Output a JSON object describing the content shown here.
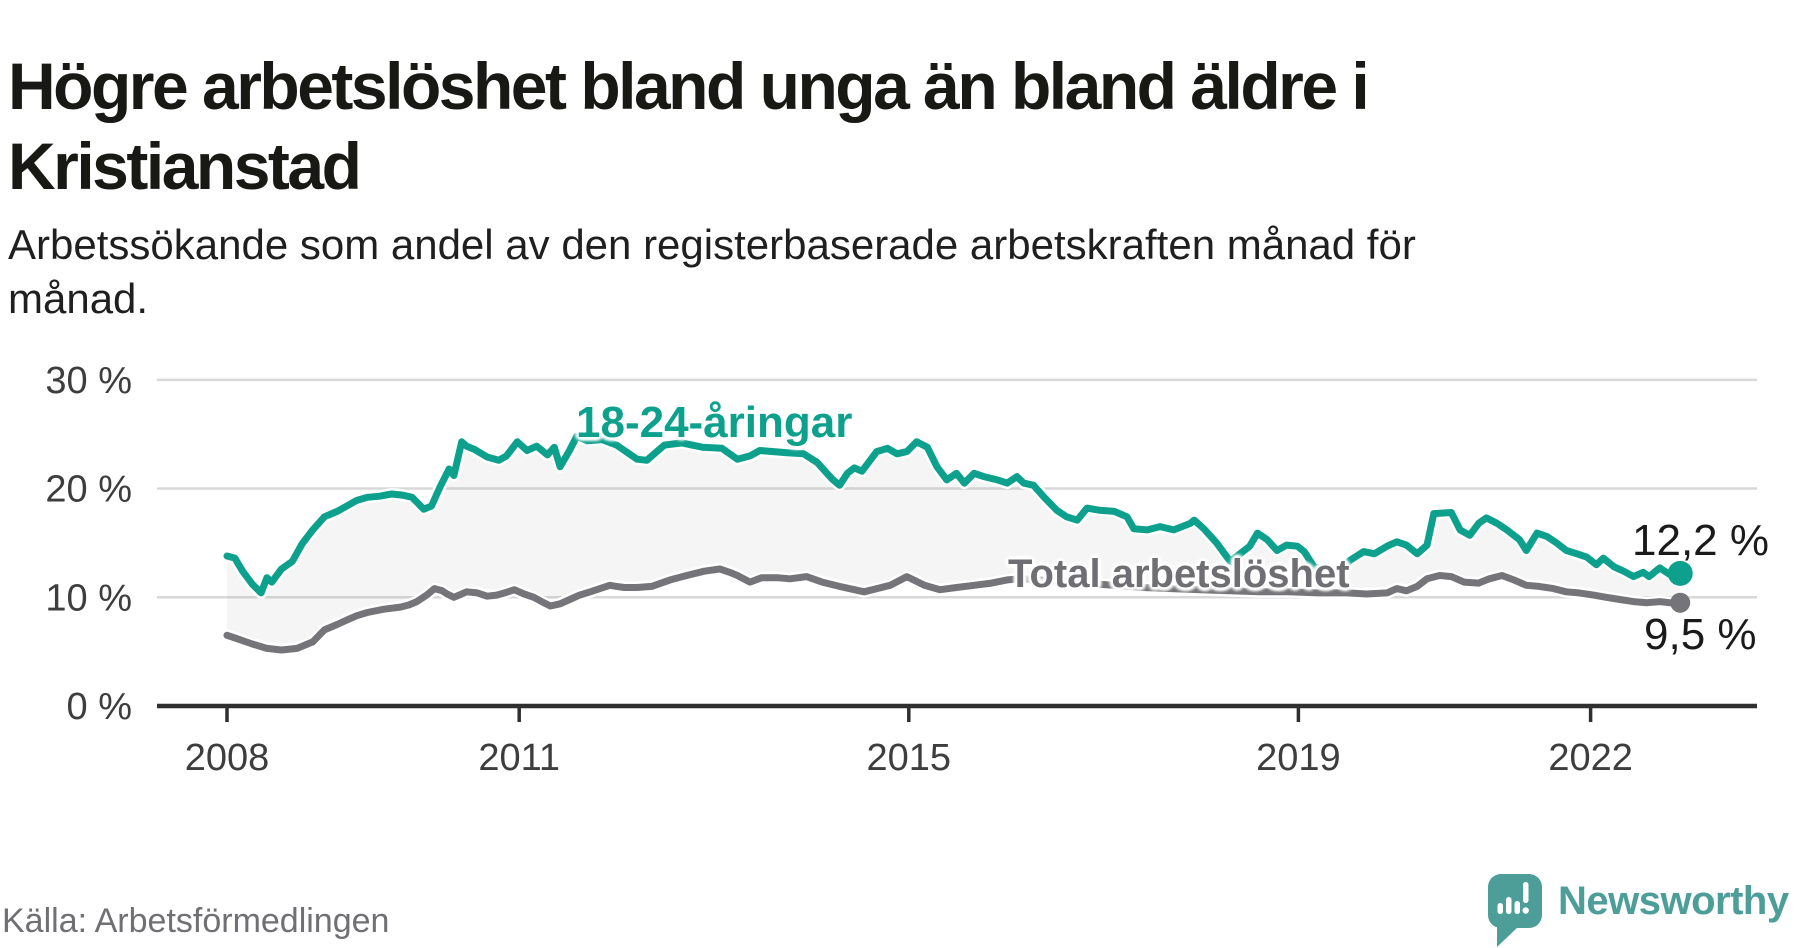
{
  "header": {
    "title": "Högre arbetslöshet bland unga än bland äldre i Kristianstad",
    "subtitle": "Arbetssökande som andel av den registerbaserade arbetskraften månad för månad."
  },
  "footer": {
    "source": "Källa: Arbetsförmedlingen",
    "logo_text": "Newsworthy"
  },
  "colors": {
    "young_line": "#0da18d",
    "total_line": "#757579",
    "fill_between": "rgba(140,140,145,0.09)",
    "gridline": "#d8d8d8",
    "axis": "#2f2f2f",
    "tick_text": "#3d3d3d",
    "value_text": "#1a1a1a",
    "logo_teal": "#4d9e99"
  },
  "chart_data": {
    "type": "line",
    "title": "Högre arbetslöshet bland unga än bland äldre i Kristianstad",
    "subtitle": "Arbetssökande som andel av den registerbaserade arbetskraften månad för månad.",
    "xlabel": "",
    "ylabel": "",
    "grid": "horizontal",
    "legend_position": "inline-labels",
    "fill_between_series": true,
    "x": {
      "min": 2008.0,
      "max": 2022.92,
      "ticks": [
        2008,
        2011,
        2015,
        2019,
        2022
      ]
    },
    "y": {
      "min": 0,
      "max": 30,
      "ticks": [
        0,
        10,
        20,
        30
      ],
      "tick_suffix": " %"
    },
    "series": [
      {
        "name": "18-24-åringar",
        "color": "#0da18d",
        "end_value": 12.2,
        "end_value_label": "12,2 %",
        "points": [
          [
            2008.0,
            13.8
          ],
          [
            2008.08,
            13.6
          ],
          [
            2008.16,
            12.4
          ],
          [
            2008.26,
            11.2
          ],
          [
            2008.35,
            10.4
          ],
          [
            2008.41,
            11.8
          ],
          [
            2008.46,
            11.4
          ],
          [
            2008.56,
            12.6
          ],
          [
            2008.67,
            13.3
          ],
          [
            2008.77,
            14.9
          ],
          [
            2008.88,
            16.2
          ],
          [
            2009.0,
            17.4
          ],
          [
            2009.13,
            17.9
          ],
          [
            2009.23,
            18.4
          ],
          [
            2009.33,
            18.9
          ],
          [
            2009.44,
            19.2
          ],
          [
            2009.57,
            19.3
          ],
          [
            2009.69,
            19.5
          ],
          [
            2009.8,
            19.4
          ],
          [
            2009.9,
            19.2
          ],
          [
            2010.02,
            18.1
          ],
          [
            2010.1,
            18.4
          ],
          [
            2010.19,
            20.2
          ],
          [
            2010.28,
            21.8
          ],
          [
            2010.33,
            21.2
          ],
          [
            2010.41,
            24.3
          ],
          [
            2010.46,
            23.9
          ],
          [
            2010.54,
            23.6
          ],
          [
            2010.67,
            22.9
          ],
          [
            2010.79,
            22.6
          ],
          [
            2010.87,
            23.0
          ],
          [
            2010.98,
            24.3
          ],
          [
            2011.08,
            23.5
          ],
          [
            2011.18,
            23.9
          ],
          [
            2011.29,
            23.1
          ],
          [
            2011.36,
            23.8
          ],
          [
            2011.42,
            22.0
          ],
          [
            2011.51,
            23.4
          ],
          [
            2011.59,
            24.8
          ],
          [
            2011.7,
            24.4
          ],
          [
            2011.85,
            24.5
          ],
          [
            2012.0,
            24.0
          ],
          [
            2012.21,
            22.7
          ],
          [
            2012.31,
            22.6
          ],
          [
            2012.49,
            24.0
          ],
          [
            2012.67,
            24.2
          ],
          [
            2012.88,
            23.8
          ],
          [
            2013.08,
            23.7
          ],
          [
            2013.24,
            22.7
          ],
          [
            2013.37,
            23.0
          ],
          [
            2013.47,
            23.5
          ],
          [
            2013.75,
            23.3
          ],
          [
            2013.92,
            23.2
          ],
          [
            2014.06,
            22.4
          ],
          [
            2014.21,
            20.9
          ],
          [
            2014.29,
            20.3
          ],
          [
            2014.37,
            21.4
          ],
          [
            2014.44,
            21.9
          ],
          [
            2014.52,
            21.6
          ],
          [
            2014.67,
            23.4
          ],
          [
            2014.78,
            23.7
          ],
          [
            2014.88,
            23.2
          ],
          [
            2014.98,
            23.4
          ],
          [
            2015.08,
            24.3
          ],
          [
            2015.19,
            23.8
          ],
          [
            2015.29,
            22.0
          ],
          [
            2015.39,
            20.8
          ],
          [
            2015.49,
            21.4
          ],
          [
            2015.57,
            20.5
          ],
          [
            2015.67,
            21.4
          ],
          [
            2015.77,
            21.1
          ],
          [
            2015.91,
            20.8
          ],
          [
            2016.01,
            20.5
          ],
          [
            2016.11,
            21.1
          ],
          [
            2016.18,
            20.5
          ],
          [
            2016.28,
            20.3
          ],
          [
            2016.39,
            19.2
          ],
          [
            2016.52,
            18.0
          ],
          [
            2016.62,
            17.4
          ],
          [
            2016.73,
            17.1
          ],
          [
            2016.83,
            18.2
          ],
          [
            2016.96,
            18.0
          ],
          [
            2017.11,
            17.9
          ],
          [
            2017.24,
            17.4
          ],
          [
            2017.31,
            16.3
          ],
          [
            2017.45,
            16.2
          ],
          [
            2017.58,
            16.5
          ],
          [
            2017.72,
            16.2
          ],
          [
            2017.89,
            16.8
          ],
          [
            2017.93,
            17.1
          ],
          [
            2018.03,
            16.3
          ],
          [
            2018.16,
            15.0
          ],
          [
            2018.3,
            13.3
          ],
          [
            2018.4,
            14.0
          ],
          [
            2018.5,
            14.7
          ],
          [
            2018.58,
            15.9
          ],
          [
            2018.68,
            15.3
          ],
          [
            2018.78,
            14.3
          ],
          [
            2018.88,
            14.8
          ],
          [
            2018.99,
            14.7
          ],
          [
            2019.06,
            14.2
          ],
          [
            2019.16,
            12.8
          ],
          [
            2019.3,
            12.4
          ],
          [
            2019.4,
            12.3
          ],
          [
            2019.53,
            13.4
          ],
          [
            2019.67,
            14.2
          ],
          [
            2019.78,
            14.0
          ],
          [
            2019.91,
            14.7
          ],
          [
            2020.01,
            15.1
          ],
          [
            2020.11,
            14.8
          ],
          [
            2020.22,
            14.0
          ],
          [
            2020.32,
            14.8
          ],
          [
            2020.39,
            17.7
          ],
          [
            2020.57,
            17.8
          ],
          [
            2020.66,
            16.2
          ],
          [
            2020.76,
            15.7
          ],
          [
            2020.85,
            16.8
          ],
          [
            2020.93,
            17.3
          ],
          [
            2021.04,
            16.8
          ],
          [
            2021.14,
            16.2
          ],
          [
            2021.27,
            15.3
          ],
          [
            2021.34,
            14.3
          ],
          [
            2021.45,
            15.9
          ],
          [
            2021.55,
            15.6
          ],
          [
            2021.65,
            15.0
          ],
          [
            2021.75,
            14.3
          ],
          [
            2021.86,
            14.0
          ],
          [
            2021.96,
            13.7
          ],
          [
            2022.06,
            13.0
          ],
          [
            2022.13,
            13.6
          ],
          [
            2022.24,
            12.8
          ],
          [
            2022.34,
            12.4
          ],
          [
            2022.44,
            11.9
          ],
          [
            2022.54,
            12.3
          ],
          [
            2022.6,
            11.9
          ],
          [
            2022.71,
            12.7
          ],
          [
            2022.81,
            12.1
          ],
          [
            2022.92,
            12.2
          ]
        ]
      },
      {
        "name": "Total arbetslöshet",
        "color": "#757579",
        "end_value": 9.5,
        "end_value_label": "9,5 %",
        "points": [
          [
            2008.0,
            6.5
          ],
          [
            2008.1,
            6.2
          ],
          [
            2008.26,
            5.7
          ],
          [
            2008.41,
            5.3
          ],
          [
            2008.56,
            5.15
          ],
          [
            2008.72,
            5.3
          ],
          [
            2008.88,
            5.9
          ],
          [
            2009.0,
            7.0
          ],
          [
            2009.13,
            7.5
          ],
          [
            2009.23,
            7.9
          ],
          [
            2009.33,
            8.3
          ],
          [
            2009.44,
            8.6
          ],
          [
            2009.61,
            8.9
          ],
          [
            2009.78,
            9.1
          ],
          [
            2009.87,
            9.3
          ],
          [
            2009.95,
            9.6
          ],
          [
            2010.05,
            10.2
          ],
          [
            2010.13,
            10.8
          ],
          [
            2010.21,
            10.6
          ],
          [
            2010.26,
            10.3
          ],
          [
            2010.33,
            10.0
          ],
          [
            2010.41,
            10.3
          ],
          [
            2010.46,
            10.5
          ],
          [
            2010.57,
            10.4
          ],
          [
            2010.67,
            10.1
          ],
          [
            2010.77,
            10.2
          ],
          [
            2010.85,
            10.4
          ],
          [
            2010.95,
            10.7
          ],
          [
            2011.05,
            10.3
          ],
          [
            2011.15,
            10.0
          ],
          [
            2011.23,
            9.6
          ],
          [
            2011.32,
            9.2
          ],
          [
            2011.42,
            9.4
          ],
          [
            2011.52,
            9.8
          ],
          [
            2011.62,
            10.2
          ],
          [
            2011.73,
            10.5
          ],
          [
            2011.83,
            10.8
          ],
          [
            2011.93,
            11.1
          ],
          [
            2012.0,
            11.0
          ],
          [
            2012.08,
            10.9
          ],
          [
            2012.21,
            10.9
          ],
          [
            2012.36,
            11.0
          ],
          [
            2012.55,
            11.6
          ],
          [
            2012.72,
            12.0
          ],
          [
            2012.9,
            12.4
          ],
          [
            2013.06,
            12.6
          ],
          [
            2013.16,
            12.3
          ],
          [
            2013.24,
            12.0
          ],
          [
            2013.37,
            11.4
          ],
          [
            2013.49,
            11.8
          ],
          [
            2013.65,
            11.8
          ],
          [
            2013.78,
            11.7
          ],
          [
            2013.95,
            11.9
          ],
          [
            2014.11,
            11.4
          ],
          [
            2014.29,
            11.0
          ],
          [
            2014.54,
            10.5
          ],
          [
            2014.81,
            11.1
          ],
          [
            2014.98,
            11.9
          ],
          [
            2015.16,
            11.1
          ],
          [
            2015.32,
            10.7
          ],
          [
            2015.49,
            10.9
          ],
          [
            2015.67,
            11.1
          ],
          [
            2015.85,
            11.3
          ],
          [
            2016.01,
            11.6
          ],
          [
            2016.16,
            11.7
          ],
          [
            2016.5,
            11.5
          ],
          [
            2016.8,
            11.3
          ],
          [
            2017.1,
            11.1
          ],
          [
            2017.4,
            10.9
          ],
          [
            2017.7,
            10.8
          ],
          [
            2018.0,
            10.7
          ],
          [
            2018.3,
            10.6
          ],
          [
            2018.6,
            10.5
          ],
          [
            2018.9,
            10.5
          ],
          [
            2019.2,
            10.4
          ],
          [
            2019.5,
            10.4
          ],
          [
            2019.7,
            10.3
          ],
          [
            2019.91,
            10.4
          ],
          [
            2020.01,
            10.8
          ],
          [
            2020.11,
            10.6
          ],
          [
            2020.22,
            11.0
          ],
          [
            2020.32,
            11.7
          ],
          [
            2020.45,
            12.0
          ],
          [
            2020.57,
            11.9
          ],
          [
            2020.7,
            11.4
          ],
          [
            2020.85,
            11.3
          ],
          [
            2020.96,
            11.7
          ],
          [
            2021.09,
            12.0
          ],
          [
            2021.21,
            11.6
          ],
          [
            2021.34,
            11.1
          ],
          [
            2021.47,
            11.0
          ],
          [
            2021.62,
            10.8
          ],
          [
            2021.75,
            10.5
          ],
          [
            2021.88,
            10.4
          ],
          [
            2022.03,
            10.2
          ],
          [
            2022.16,
            10.0
          ],
          [
            2022.3,
            9.8
          ],
          [
            2022.44,
            9.6
          ],
          [
            2022.58,
            9.5
          ],
          [
            2022.71,
            9.6
          ],
          [
            2022.81,
            9.5
          ],
          [
            2022.92,
            9.5
          ]
        ]
      }
    ]
  }
}
